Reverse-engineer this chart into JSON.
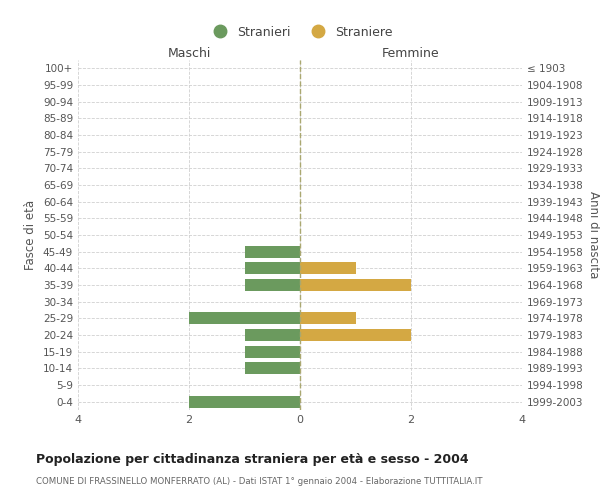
{
  "age_groups": [
    "100+",
    "95-99",
    "90-94",
    "85-89",
    "80-84",
    "75-79",
    "70-74",
    "65-69",
    "60-64",
    "55-59",
    "50-54",
    "45-49",
    "40-44",
    "35-39",
    "30-34",
    "25-29",
    "20-24",
    "15-19",
    "10-14",
    "5-9",
    "0-4"
  ],
  "birth_years": [
    "≤ 1903",
    "1904-1908",
    "1909-1913",
    "1914-1918",
    "1919-1923",
    "1924-1928",
    "1929-1933",
    "1934-1938",
    "1939-1943",
    "1944-1948",
    "1949-1953",
    "1954-1958",
    "1959-1963",
    "1964-1968",
    "1969-1973",
    "1974-1978",
    "1979-1983",
    "1984-1988",
    "1989-1993",
    "1994-1998",
    "1999-2003"
  ],
  "maschi_stranieri": [
    0,
    0,
    0,
    0,
    0,
    0,
    0,
    0,
    0,
    0,
    0,
    1,
    1,
    1,
    0,
    2,
    1,
    1,
    1,
    0,
    2
  ],
  "femmine_straniere": [
    0,
    0,
    0,
    0,
    0,
    0,
    0,
    0,
    0,
    0,
    0,
    0,
    1,
    2,
    0,
    1,
    2,
    0,
    0,
    0,
    0
  ],
  "color_maschi": "#6b9a5e",
  "color_femmine": "#d4a843",
  "title": "Popolazione per cittadinanza straniera per età e sesso - 2004",
  "subtitle": "COMUNE DI FRASSINELLO MONFERRATO (AL) - Dati ISTAT 1° gennaio 2004 - Elaborazione TUTTITALIA.IT",
  "ylabel_left": "Fasce di età",
  "ylabel_right": "Anni di nascita",
  "xlabel_left": "Maschi",
  "xlabel_right": "Femmine",
  "legend_stranieri": "Stranieri",
  "legend_straniere": "Straniere",
  "xlim": 4,
  "background_color": "#ffffff",
  "grid_color": "#d0d0d0"
}
